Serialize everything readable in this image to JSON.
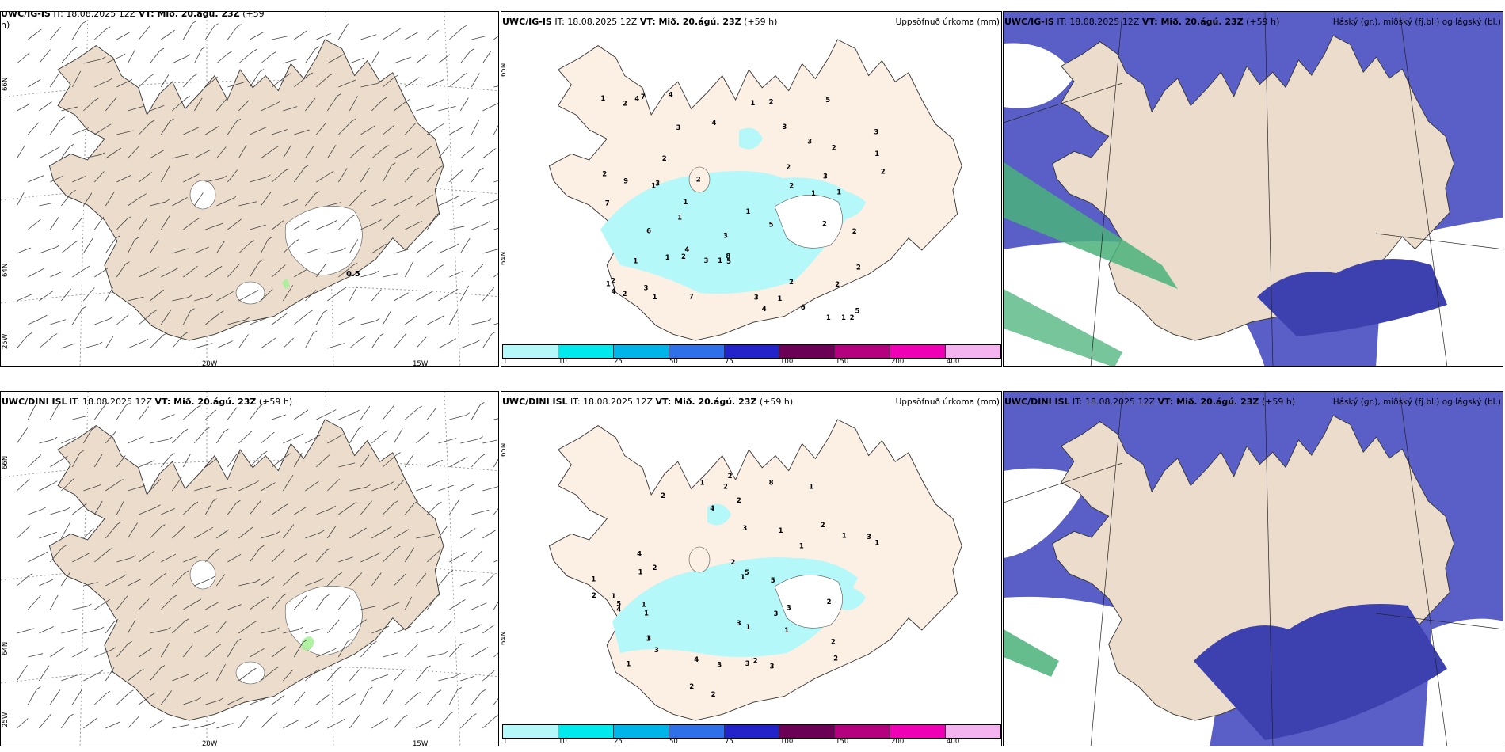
{
  "rows": [
    {
      "model": "UWC/IG-IS",
      "wind": {
        "title_pre": "UWC/IG-IS",
        "title_mid": " IT: 18.08.2025 12Z ",
        "title_vt": "VT: Mið. 20.ágú. 23Z",
        "title_post": " (+59",
        "title_line2": "h)",
        "annotation": "0.5"
      },
      "precip": {
        "title_pre": "UWC/IG-IS",
        "title_mid": " IT: 18.08.2025 12Z ",
        "title_vt": "VT: Mið. 20.ágú. 23Z",
        "title_post": " (+59 h)",
        "right": "Uppsöfnuð úrkoma (mm)",
        "labels": [
          "3",
          "1",
          "4",
          "2",
          "2",
          "3",
          "1",
          "1",
          "2",
          "1",
          "1",
          "1",
          "1",
          "1",
          "1",
          "2",
          "1",
          "2",
          "3",
          "2",
          "1",
          "3",
          "1",
          "1",
          "2",
          "2",
          "3",
          "2",
          "2",
          "1",
          "4",
          "3",
          "2",
          "2",
          "3",
          "2",
          "9",
          "7",
          "6",
          "7",
          "7",
          "5",
          "2",
          "6",
          "5",
          "4",
          "8",
          "2",
          "4",
          "3",
          "4",
          "3",
          "5",
          "5",
          "1",
          "2",
          "1",
          "2",
          "1",
          "3",
          "2",
          "4"
        ]
      },
      "cloud": {
        "title_pre": "UWC/IG-IS",
        "title_mid": " IT: 18.08.2025 12Z ",
        "title_vt": "VT: Mið. 20.ágú. 23Z",
        "title_post": " (+59 h)",
        "right": "Háský (gr.), miðský (fj.bl.) og lágský (bl.)"
      }
    },
    {
      "model": "UWC/DINI ISL",
      "wind": {
        "title_pre": "UWC/DINI ISL",
        "title_mid": " IT: 18.08.2025 12Z ",
        "title_vt": "VT: Mið. 20.ágú. 23Z",
        "title_post": " (+59 h)",
        "title_line2": "",
        "annotation": ""
      },
      "precip": {
        "title_pre": "UWC/DINI ISL",
        "title_mid": " IT: 18.08.2025 12Z ",
        "title_vt": "VT: Mið. 20.ágú. 23Z",
        "title_post": " (+59 h)",
        "right": "Uppsöfnuð úrkoma (mm)",
        "labels": [
          "1",
          "1",
          "2",
          "2",
          "1",
          "2",
          "1",
          "3",
          "1",
          "1",
          "1",
          "2",
          "1",
          "1",
          "2",
          "1",
          "2",
          "1",
          "1",
          "2",
          "3",
          "2",
          "4",
          "5",
          "2",
          "4",
          "5",
          "8",
          "3",
          "3",
          "4",
          "3",
          "2",
          "3",
          "2",
          "4",
          "3",
          "5",
          "1",
          "2",
          "1",
          "2",
          "3",
          "1",
          "2",
          "1",
          "3",
          "3"
        ]
      },
      "cloud": {
        "title_pre": "UWC/DINI ISL",
        "title_mid": " IT: 18.08.2025 12Z ",
        "title_vt": "VT: Mið. 20.ágú. 23Z",
        "title_post": " (+59 h)",
        "right": "Háský (gr.), miðský (fj.bl.) og lágský (bl.)"
      }
    }
  ],
  "axes": {
    "lon": [
      "20W",
      "15W"
    ],
    "lat": [
      "66N",
      "64N",
      "25W"
    ],
    "lat_right": [
      "65N",
      "64N"
    ]
  },
  "colorbar": {
    "ticks": [
      "1",
      "10",
      "25",
      "50",
      "75",
      "100",
      "150",
      "200",
      "400"
    ],
    "colors": [
      "#b4f8fa",
      "#00eaee",
      "#00b4e8",
      "#2f6fe8",
      "#2223c8",
      "#6b0056",
      "#b3007e",
      "#f000b4",
      "#f4b4f0"
    ]
  },
  "colors": {
    "land": "#ebdccb",
    "land_light": "#fcefe3",
    "sea_cloud": "#5a5fc8",
    "precip": "#b4f8fa",
    "high_cloud": "#4ab27a"
  }
}
